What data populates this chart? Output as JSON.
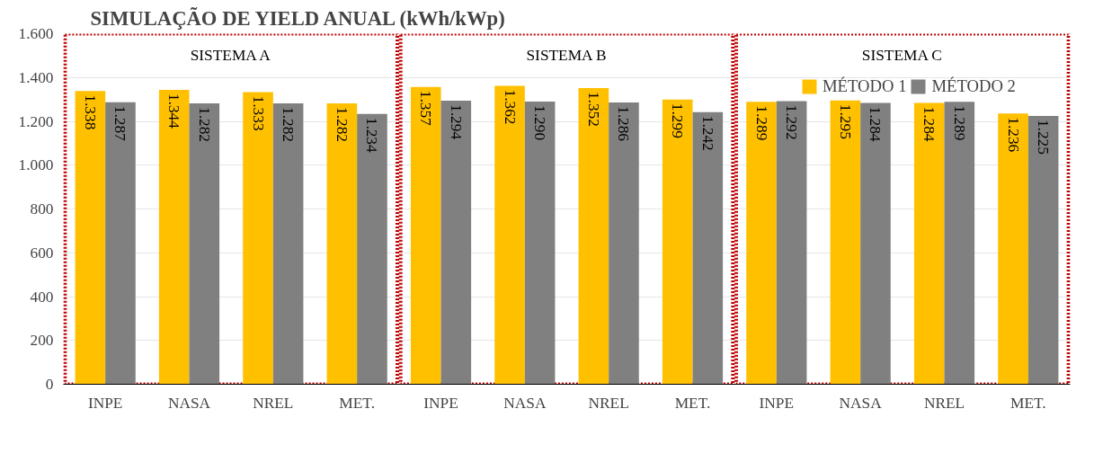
{
  "chart_data": {
    "type": "bar",
    "title": "SIMULAÇÃO DE YIELD ANUAL (kWh/kWp)",
    "categories": [
      "INPE",
      "NASA",
      "NREL",
      "MET.",
      "INPE",
      "NASA",
      "NREL",
      "MET.",
      "INPE",
      "NASA",
      "NREL",
      "MET."
    ],
    "series": [
      {
        "name": "MÉTODO 1",
        "color": "#ffc000",
        "values": [
          1338,
          1344,
          1333,
          1282,
          1357,
          1362,
          1352,
          1299,
          1289,
          1295,
          1284,
          1236
        ],
        "value_labels": [
          "1.338",
          "1.344",
          "1.333",
          "1.282",
          "1.357",
          "1.362",
          "1.352",
          "1.299",
          "1.289",
          "1.295",
          "1.284",
          "1.236"
        ]
      },
      {
        "name": "MÉTODO 2",
        "color": "#808080",
        "values": [
          1287,
          1282,
          1282,
          1234,
          1294,
          1290,
          1286,
          1242,
          1292,
          1284,
          1289,
          1225
        ],
        "value_labels": [
          "1.287",
          "1.282",
          "1.282",
          "1.234",
          "1.294",
          "1.290",
          "1.286",
          "1.242",
          "1.292",
          "1.284",
          "1.289",
          "1.225"
        ]
      }
    ],
    "annotations": [
      "SISTEMA A",
      "SISTEMA B",
      "SISTEMA C"
    ],
    "ylim": [
      0,
      1600
    ],
    "yticks": [
      {
        "value": 0,
        "label": "0"
      },
      {
        "value": 200,
        "label": "200"
      },
      {
        "value": 400,
        "label": "400"
      },
      {
        "value": 600,
        "label": "600"
      },
      {
        "value": 800,
        "label": "800"
      },
      {
        "value": 1000,
        "label": "1.000"
      },
      {
        "value": 1200,
        "label": "1.200"
      },
      {
        "value": 1400,
        "label": "1.400"
      },
      {
        "value": 1600,
        "label": "1.600"
      }
    ],
    "grid": "y",
    "legend": "top right"
  }
}
